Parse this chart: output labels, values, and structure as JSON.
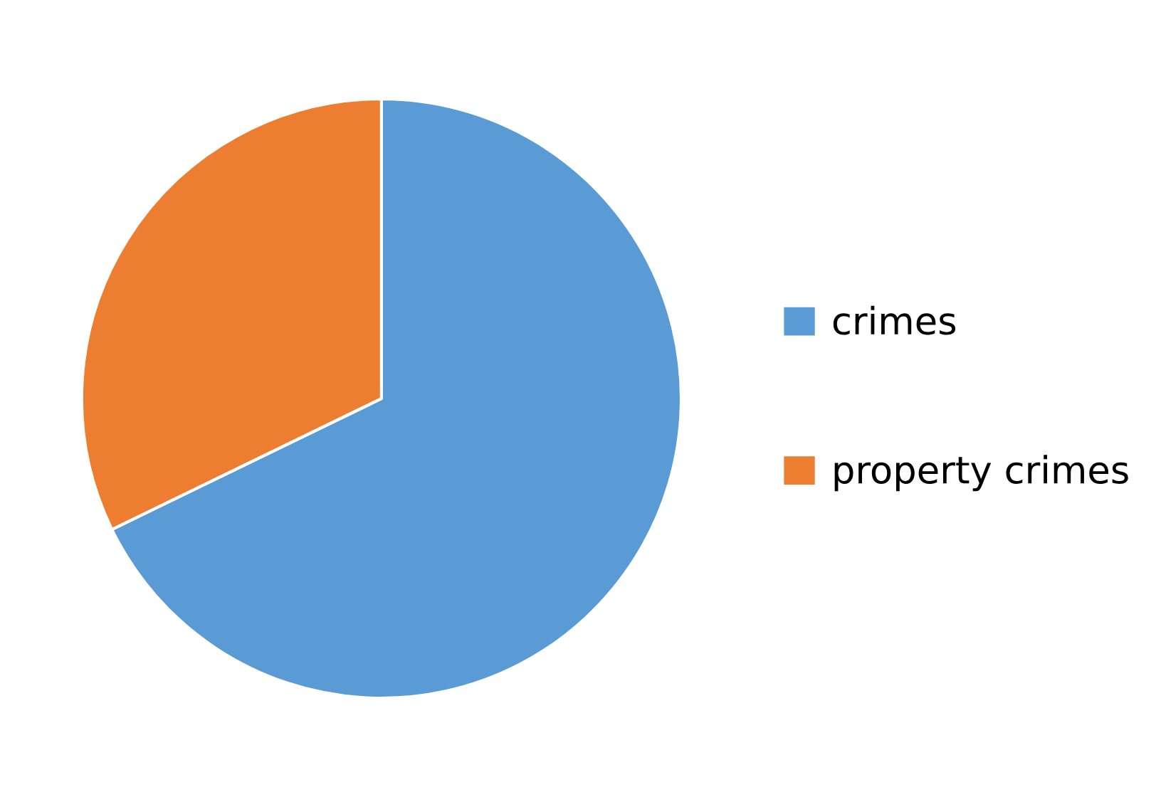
{
  "chart_data": {
    "type": "pie",
    "categories": [
      "crimes",
      "property crimes"
    ],
    "values": [
      67.8,
      32.2
    ],
    "colors": [
      "#5b9bd5",
      "#ed7d31"
    ],
    "legend": "right"
  }
}
